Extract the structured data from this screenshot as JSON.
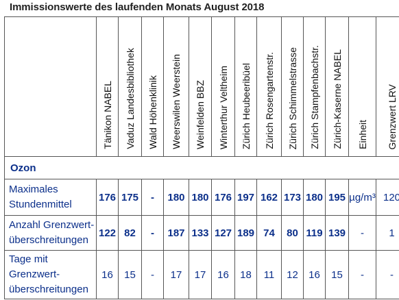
{
  "title": "Immissionswerte des laufenden Monats August 2018",
  "headers": [
    "Tänikon NABEL",
    "Vaduz Landesbibliothek",
    "Wald Höhenklinik",
    "Weerswilen Weerstein",
    "Weinfelden BBZ",
    "Winterthur Veltheim",
    "Zürich Heubeeribüel",
    "Zürich Rosengartenstr.",
    "Zürich Schimmelstrasse",
    "Zürich Stampfenbachstr.",
    "Zürich-Kaserne NABEL",
    "Einheit",
    "Grenzwert LRV"
  ],
  "section": "Ozon",
  "rows": [
    {
      "label": "Maximales Stundenmittel",
      "values": [
        "176",
        "175",
        "-",
        "180",
        "180",
        "176",
        "197",
        "162",
        "173",
        "180",
        "195",
        "µg/m³",
        "120"
      ]
    },
    {
      "label": "Anzahl Grenzwert-überschreitungen",
      "values": [
        "122",
        "82",
        "-",
        "187",
        "133",
        "127",
        "189",
        "74",
        "80",
        "119",
        "139",
        "-",
        "1"
      ]
    },
    {
      "label": "Tage mit Grenzwert-überschreitungen",
      "values": [
        "16",
        "15",
        "-",
        "17",
        "17",
        "16",
        "18",
        "11",
        "12",
        "16",
        "15",
        "-",
        "-"
      ]
    }
  ]
}
